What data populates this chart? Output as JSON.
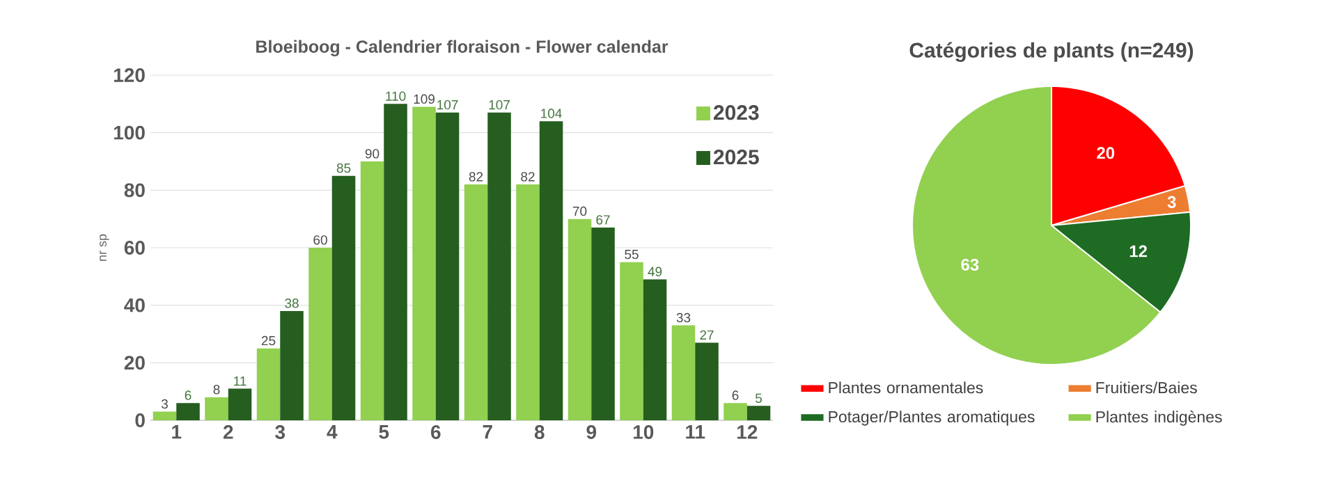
{
  "chart_data": [
    {
      "type": "bar",
      "title": "Bloeiboog - Calendrier floraison - Flower calendar",
      "ylabel": "nr sp",
      "categories": [
        "1",
        "2",
        "3",
        "4",
        "5",
        "6",
        "7",
        "8",
        "9",
        "10",
        "11",
        "12"
      ],
      "series": [
        {
          "name": "2023",
          "color": "#92d050",
          "values": [
            3,
            8,
            25,
            60,
            90,
            109,
            82,
            82,
            70,
            55,
            33,
            6
          ]
        },
        {
          "name": "2025",
          "color": "#255e1f",
          "values": [
            6,
            11,
            38,
            85,
            110,
            107,
            107,
            104,
            67,
            49,
            27,
            5
          ]
        }
      ],
      "ylim": [
        0,
        120
      ],
      "yticks": [
        0,
        20,
        40,
        60,
        80,
        100,
        120
      ],
      "grid": "y",
      "legend": "top right",
      "data_labels": true
    },
    {
      "type": "pie",
      "title": "Catégories de plants (n=249)",
      "categories": [
        "Plantes ornamentales",
        "Fruitiers/Baies",
        "Potager/Plantes aromatiques",
        "Plantes indigènes"
      ],
      "values": [
        20,
        3,
        12,
        63
      ],
      "colors": [
        "#ff0000",
        "#ed7d31",
        "#1e6b24",
        "#92d050"
      ],
      "legend": "bottom",
      "data_labels": true
    }
  ]
}
